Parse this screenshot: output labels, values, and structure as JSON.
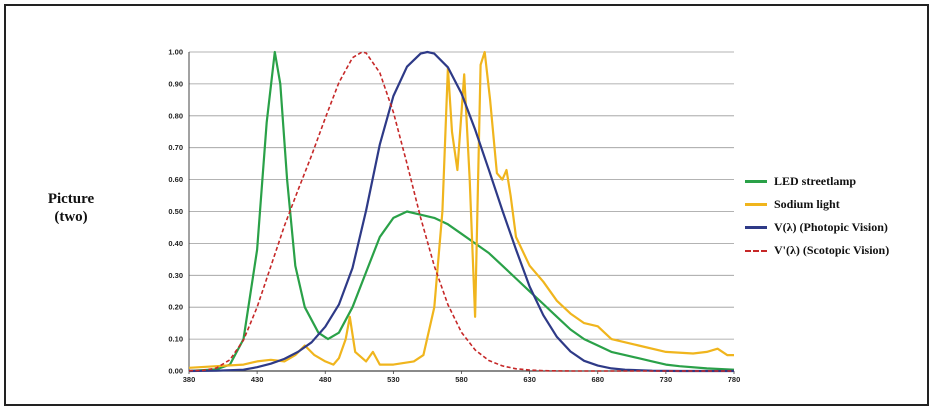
{
  "side_label": {
    "line1": "Picture",
    "line2": "(two)"
  },
  "chart_data": {
    "type": "line",
    "title": "",
    "xlabel": "",
    "ylabel": "",
    "xlim": [
      380,
      780
    ],
    "ylim": [
      0,
      1
    ],
    "x_ticks": [
      "380",
      "430",
      "480",
      "530",
      "580",
      "630",
      "680",
      "730",
      "780"
    ],
    "y_ticks": [
      "0.00",
      "0.10",
      "0.20",
      "0.30",
      "0.40",
      "0.50",
      "0.60",
      "0.70",
      "0.80",
      "0.90",
      "1.00"
    ],
    "grid": "horizontal",
    "legend_position": "right",
    "series": [
      {
        "name": "LED streetlamp",
        "color": "#2aa148",
        "dash": "solid",
        "points": [
          [
            380,
            0.0
          ],
          [
            400,
            0.005
          ],
          [
            410,
            0.02
          ],
          [
            420,
            0.1
          ],
          [
            430,
            0.38
          ],
          [
            437,
            0.78
          ],
          [
            443,
            1.0
          ],
          [
            447,
            0.9
          ],
          [
            452,
            0.6
          ],
          [
            458,
            0.33
          ],
          [
            465,
            0.2
          ],
          [
            475,
            0.12
          ],
          [
            482,
            0.1
          ],
          [
            490,
            0.12
          ],
          [
            500,
            0.2
          ],
          [
            510,
            0.31
          ],
          [
            520,
            0.42
          ],
          [
            530,
            0.48
          ],
          [
            540,
            0.5
          ],
          [
            550,
            0.49
          ],
          [
            560,
            0.48
          ],
          [
            570,
            0.46
          ],
          [
            580,
            0.43
          ],
          [
            590,
            0.4
          ],
          [
            600,
            0.37
          ],
          [
            610,
            0.33
          ],
          [
            620,
            0.29
          ],
          [
            630,
            0.25
          ],
          [
            640,
            0.21
          ],
          [
            650,
            0.17
          ],
          [
            660,
            0.13
          ],
          [
            670,
            0.1
          ],
          [
            680,
            0.08
          ],
          [
            690,
            0.06
          ],
          [
            700,
            0.05
          ],
          [
            710,
            0.04
          ],
          [
            720,
            0.03
          ],
          [
            730,
            0.02
          ],
          [
            740,
            0.015
          ],
          [
            760,
            0.008
          ],
          [
            780,
            0.004
          ]
        ]
      },
      {
        "name": "Sodium light",
        "color": "#f0b51d",
        "dash": "solid",
        "points": [
          [
            380,
            0.01
          ],
          [
            400,
            0.015
          ],
          [
            420,
            0.02
          ],
          [
            430,
            0.03
          ],
          [
            440,
            0.035
          ],
          [
            450,
            0.03
          ],
          [
            458,
            0.05
          ],
          [
            465,
            0.08
          ],
          [
            472,
            0.05
          ],
          [
            480,
            0.03
          ],
          [
            486,
            0.02
          ],
          [
            490,
            0.04
          ],
          [
            495,
            0.1
          ],
          [
            498,
            0.17
          ],
          [
            502,
            0.06
          ],
          [
            510,
            0.03
          ],
          [
            515,
            0.06
          ],
          [
            520,
            0.02
          ],
          [
            530,
            0.02
          ],
          [
            545,
            0.03
          ],
          [
            552,
            0.05
          ],
          [
            560,
            0.2
          ],
          [
            566,
            0.5
          ],
          [
            570,
            0.95
          ],
          [
            573,
            0.75
          ],
          [
            577,
            0.63
          ],
          [
            582,
            0.93
          ],
          [
            586,
            0.6
          ],
          [
            590,
            0.17
          ],
          [
            594,
            0.96
          ],
          [
            597,
            1.0
          ],
          [
            601,
            0.85
          ],
          [
            606,
            0.62
          ],
          [
            610,
            0.6
          ],
          [
            613,
            0.63
          ],
          [
            616,
            0.55
          ],
          [
            620,
            0.42
          ],
          [
            630,
            0.33
          ],
          [
            640,
            0.28
          ],
          [
            650,
            0.22
          ],
          [
            660,
            0.18
          ],
          [
            670,
            0.15
          ],
          [
            680,
            0.14
          ],
          [
            690,
            0.1
          ],
          [
            710,
            0.08
          ],
          [
            730,
            0.06
          ],
          [
            750,
            0.055
          ],
          [
            760,
            0.06
          ],
          [
            768,
            0.07
          ],
          [
            775,
            0.05
          ],
          [
            780,
            0.05
          ]
        ]
      },
      {
        "name": "V(λ) (Photopic Vision)",
        "color": "#2e3a87",
        "dash": "solid",
        "points": [
          [
            380,
            0.0
          ],
          [
            400,
            0.001
          ],
          [
            420,
            0.004
          ],
          [
            430,
            0.012
          ],
          [
            440,
            0.023
          ],
          [
            450,
            0.038
          ],
          [
            460,
            0.06
          ],
          [
            470,
            0.09
          ],
          [
            480,
            0.139
          ],
          [
            490,
            0.208
          ],
          [
            500,
            0.323
          ],
          [
            510,
            0.503
          ],
          [
            520,
            0.71
          ],
          [
            530,
            0.862
          ],
          [
            540,
            0.954
          ],
          [
            550,
            0.995
          ],
          [
            555,
            1.0
          ],
          [
            560,
            0.995
          ],
          [
            570,
            0.952
          ],
          [
            580,
            0.87
          ],
          [
            590,
            0.757
          ],
          [
            600,
            0.631
          ],
          [
            610,
            0.503
          ],
          [
            620,
            0.381
          ],
          [
            630,
            0.265
          ],
          [
            640,
            0.175
          ],
          [
            650,
            0.107
          ],
          [
            660,
            0.061
          ],
          [
            670,
            0.032
          ],
          [
            680,
            0.017
          ],
          [
            690,
            0.008
          ],
          [
            700,
            0.004
          ],
          [
            720,
            0.001
          ],
          [
            740,
            0.0
          ],
          [
            780,
            0.0
          ]
        ]
      },
      {
        "name": "V'(λ) (Scotopic Vision)",
        "color": "#c62828",
        "dash": "dashed",
        "points": [
          [
            380,
            0.001
          ],
          [
            390,
            0.002
          ],
          [
            400,
            0.009
          ],
          [
            410,
            0.035
          ],
          [
            420,
            0.097
          ],
          [
            430,
            0.2
          ],
          [
            440,
            0.328
          ],
          [
            450,
            0.455
          ],
          [
            460,
            0.567
          ],
          [
            470,
            0.676
          ],
          [
            480,
            0.793
          ],
          [
            490,
            0.904
          ],
          [
            500,
            0.982
          ],
          [
            507,
            1.0
          ],
          [
            510,
            0.997
          ],
          [
            520,
            0.935
          ],
          [
            530,
            0.811
          ],
          [
            540,
            0.65
          ],
          [
            550,
            0.481
          ],
          [
            560,
            0.329
          ],
          [
            570,
            0.208
          ],
          [
            580,
            0.121
          ],
          [
            590,
            0.066
          ],
          [
            600,
            0.033
          ],
          [
            610,
            0.016
          ],
          [
            620,
            0.007
          ],
          [
            630,
            0.003
          ],
          [
            640,
            0.001
          ],
          [
            660,
            0.0
          ],
          [
            780,
            0.0
          ]
        ]
      }
    ]
  }
}
